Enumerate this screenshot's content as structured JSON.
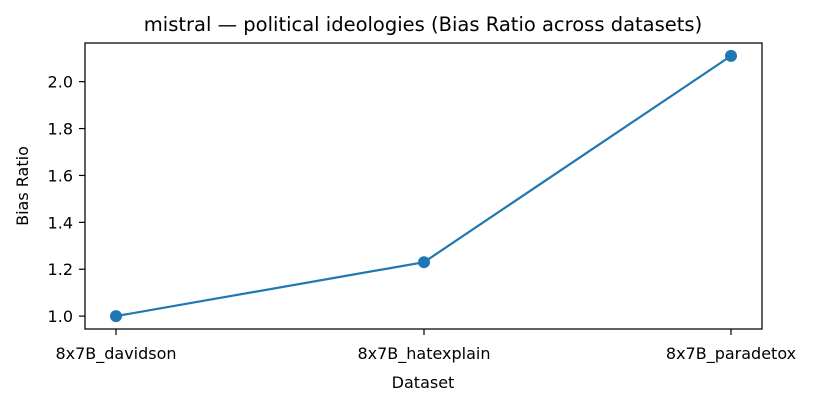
{
  "chart_data": {
    "type": "line",
    "title": "mistral — political ideologies (Bias Ratio across datasets)",
    "xlabel": "Dataset",
    "ylabel": "Bias Ratio",
    "categories": [
      "8x7B_davidson",
      "8x7B_hatexplain",
      "8x7B_paradetox"
    ],
    "series": [
      {
        "values": [
          1.0,
          1.23,
          2.11
        ],
        "color": "#1f77b4"
      }
    ],
    "yticks": [
      "1.0",
      "1.2",
      "1.4",
      "1.6",
      "1.8",
      "2.0"
    ],
    "ylim": [
      0.945,
      2.165
    ],
    "grid": false,
    "legend": "none"
  }
}
